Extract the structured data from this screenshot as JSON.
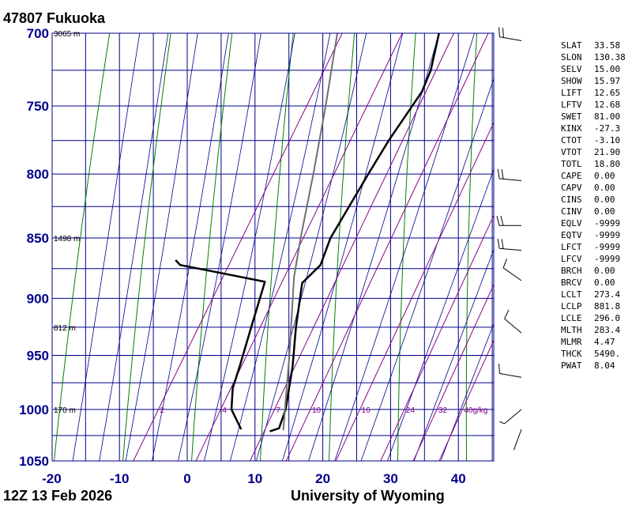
{
  "header": {
    "station": "47807  Fukuoka"
  },
  "footer": {
    "time": "12Z 13 Feb 2026",
    "source": "University of Wyoming"
  },
  "colors": {
    "grid": "#00008b",
    "dry_adiabat": "#008000",
    "moist_adiabat": "#00008b",
    "mixing_ratio": "#8b008b",
    "profile": "#000000",
    "parcel": "#707070"
  },
  "indices": [
    {
      "key": "SLAT",
      "value": "33.58"
    },
    {
      "key": "SLON",
      "value": "130.38"
    },
    {
      "key": "SELV",
      "value": "15.00"
    },
    {
      "key": "SHOW",
      "value": "15.97"
    },
    {
      "key": "LIFT",
      "value": "12.65"
    },
    {
      "key": "LFTV",
      "value": "12.68"
    },
    {
      "key": "SWET",
      "value": "81.00"
    },
    {
      "key": "KINX",
      "value": "-27.3"
    },
    {
      "key": "CTOT",
      "value": "-3.10"
    },
    {
      "key": "VTOT",
      "value": "21.90"
    },
    {
      "key": "TOTL",
      "value": "18.80"
    },
    {
      "key": "CAPE",
      "value": "0.00"
    },
    {
      "key": "CAPV",
      "value": "0.00"
    },
    {
      "key": "CINS",
      "value": "0.00"
    },
    {
      "key": "CINV",
      "value": "0.00"
    },
    {
      "key": "EQLV",
      "value": "-9999"
    },
    {
      "key": "EQTV",
      "value": "-9999"
    },
    {
      "key": "LFCT",
      "value": "-9999"
    },
    {
      "key": "LFCV",
      "value": "-9999"
    },
    {
      "key": "BRCH",
      "value": "0.00"
    },
    {
      "key": "BRCV",
      "value": "0.00"
    },
    {
      "key": "LCLT",
      "value": "273.4"
    },
    {
      "key": "LCLP",
      "value": "881.8"
    },
    {
      "key": "LCLE",
      "value": "296.0"
    },
    {
      "key": "MLTH",
      "value": "283.4"
    },
    {
      "key": "MLMR",
      "value": "4.47"
    },
    {
      "key": "THCK",
      "value": "5490."
    },
    {
      "key": "PWAT",
      "value": "8.04"
    }
  ],
  "chart_data": {
    "type": "line",
    "title": "",
    "xlabel": "",
    "ylabel": "",
    "xlim": [
      -20,
      45
    ],
    "ylim": [
      1050,
      700
    ],
    "y_scale": "log",
    "grid": true,
    "x_ticks": [
      -20,
      -10,
      0,
      10,
      20,
      30,
      40
    ],
    "y_ticks": [
      700,
      750,
      800,
      850,
      900,
      950,
      1000,
      1050
    ],
    "isobars": [
      700,
      725,
      750,
      775,
      800,
      825,
      850,
      875,
      900,
      925,
      950,
      975,
      1000,
      1025,
      1050
    ],
    "height_labels": [
      {
        "pressure": 700,
        "label": "3065 m"
      },
      {
        "pressure": 850,
        "label": "1498 m"
      },
      {
        "pressure": 925,
        "label": "812 m"
      },
      {
        "pressure": 1000,
        "label": "170 m"
      }
    ],
    "mixing_ratio_labels": [
      {
        "value": 2,
        "label": "2"
      },
      {
        "value": 4,
        "label": "4"
      },
      {
        "value": 7,
        "label": "7"
      },
      {
        "value": 10,
        "label": "10"
      },
      {
        "value": 16,
        "label": "16"
      },
      {
        "value": 24,
        "label": "24"
      },
      {
        "value": 32,
        "label": "32"
      },
      {
        "value": 40,
        "label": "40g/kg"
      }
    ],
    "series": [
      {
        "points": [
          {
            "p": 1019,
            "t": 5.3
          },
          {
            "p": 1000,
            "t": 2.2
          },
          {
            "p": 980,
            "t": 0.6
          },
          {
            "p": 960,
            "t": -0.2
          },
          {
            "p": 925,
            "t": -1.8
          },
          {
            "p": 886,
            "t": -3.6
          },
          {
            "p": 880,
            "t": -9.5
          },
          {
            "p": 872,
            "t": -17.5
          },
          {
            "p": 868,
            "t": -18.6
          }
        ]
      },
      {
        "points": [
          {
            "p": 1021,
            "t": 9.7
          },
          {
            "p": 1018,
            "t": 10.8
          },
          {
            "p": 1000,
            "t": 10.2
          },
          {
            "p": 960,
            "t": 7.6
          },
          {
            "p": 925,
            "t": 4.8
          },
          {
            "p": 887,
            "t": 2.0
          },
          {
            "p": 872,
            "t": 3.2
          },
          {
            "p": 850,
            "t": 2.4
          },
          {
            "p": 800,
            "t": 2.6
          },
          {
            "p": 775,
            "t": 2.8
          },
          {
            "p": 740,
            "t": 3.6
          },
          {
            "p": 725,
            "t": 3.1
          },
          {
            "p": 700,
            "t": 1.2
          }
        ]
      },
      {
        "points": [
          {
            "p": 1020,
            "t": 11.6
          },
          {
            "p": 950,
            "t": 6.2
          },
          {
            "p": 882,
            "t": 0.3
          },
          {
            "p": 850,
            "t": -2.0
          },
          {
            "p": 800,
            "t": -5.5
          },
          {
            "p": 750,
            "t": -9.4
          },
          {
            "p": 700,
            "t": -13.8
          }
        ]
      }
    ],
    "wind_barbs": [
      {
        "p": 1019,
        "dir": 200,
        "speed": 2
      },
      {
        "p": 1000,
        "dir": 230,
        "speed": 5
      },
      {
        "p": 970,
        "dir": 280,
        "speed": 10
      },
      {
        "p": 930,
        "dir": 310,
        "speed": 10
      },
      {
        "p": 885,
        "dir": 305,
        "speed": 10
      },
      {
        "p": 860,
        "dir": 275,
        "speed": 20
      },
      {
        "p": 840,
        "dir": 270,
        "speed": 20
      },
      {
        "p": 805,
        "dir": 275,
        "speed": 20
      },
      {
        "p": 705,
        "dir": 280,
        "speed": 20
      }
    ]
  }
}
